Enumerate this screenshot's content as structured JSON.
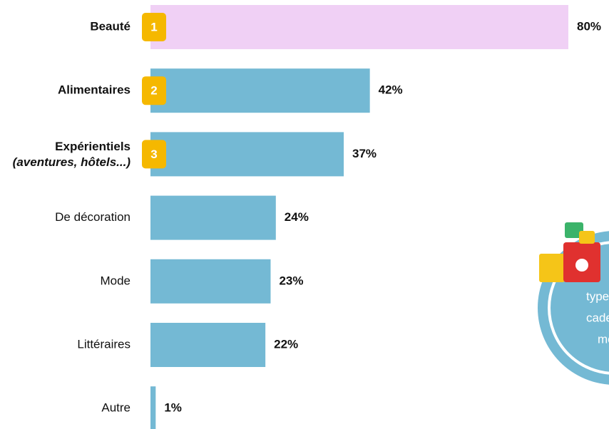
{
  "chart_data": {
    "type": "bar",
    "categories": [
      "Beauté",
      "Alimentaires",
      "Expérientiels",
      "De décoration",
      "Mode",
      "Littéraires",
      "Autre"
    ],
    "category_notes": [
      null,
      null,
      "(aventures, hôtels...)",
      null,
      null,
      null,
      null
    ],
    "values": [
      80,
      42,
      37,
      24,
      23,
      22,
      1
    ],
    "value_labels": [
      "80%",
      "42%",
      "37%",
      "24%",
      "23%",
      "22%",
      "1%"
    ],
    "ranks": [
      1,
      2,
      3
    ],
    "colors": [
      "#f0d0f5",
      "#74b9d4",
      "#74b9d4",
      "#74b9d4",
      "#74b9d4",
      "#74b9d4",
      "#74b9d4"
    ],
    "rank_color": "#f5b800",
    "annotation_lines": [
      "types",
      "cadea",
      "mo"
    ]
  }
}
